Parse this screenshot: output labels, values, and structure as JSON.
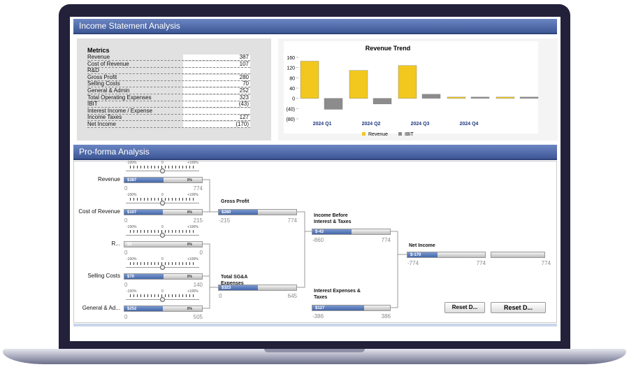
{
  "header": {
    "title": "Income Statement Analysis"
  },
  "metrics": {
    "title": "Metrics",
    "rows": [
      {
        "label": "Revenue",
        "value": "387"
      },
      {
        "label": "Cost of Revenue",
        "value": "107"
      },
      {
        "label": "R&D",
        "value": null
      },
      {
        "label": "Gross Profit",
        "value": "280"
      },
      {
        "label": "Selling Costs",
        "value": "70"
      },
      {
        "label": "General & Admin",
        "value": "252"
      },
      {
        "label": "Total Operating Expenses",
        "value": "323"
      },
      {
        "label": "IBIT",
        "value": "(43)"
      },
      {
        "label": "Interest Income / Expense",
        "value": null
      },
      {
        "label": "Income Taxes",
        "value": "127"
      },
      {
        "label": "Net Income",
        "value": "(170)"
      }
    ]
  },
  "chart_data": {
    "type": "bar",
    "title": "Revenue Trend",
    "categories": [
      "2024 Q1",
      "2024 Q2",
      "2024 Q3",
      "2024 Q4",
      null
    ],
    "series": [
      {
        "name": "Revenue",
        "color": "#f2c81e",
        "values": [
          145,
          109,
          128,
          5,
          5
        ]
      },
      {
        "name": "IBIT",
        "color": "#8c8c8c",
        "values": [
          -43,
          -22,
          16,
          5,
          5
        ]
      }
    ],
    "ylim": [
      -80,
      160
    ],
    "yticks": [
      {
        "value": -80,
        "label": "(80)"
      },
      {
        "value": -40,
        "label": "(40)"
      },
      0,
      40,
      80,
      120,
      160
    ],
    "legend": "bottom"
  },
  "proforma": {
    "title": "Pro-forma Analysis",
    "slider_scale": [
      "-100%",
      "0",
      "+100%"
    ],
    "inputs": [
      {
        "label": "Revenue",
        "value": 387,
        "value_label": "$387",
        "change": "0%",
        "min": 0,
        "max": 774
      },
      {
        "label": "Cost of Revenue",
        "value": 107,
        "value_label": "$107",
        "change": "0%",
        "min": 0,
        "max": 215
      },
      {
        "label": "R...",
        "value": 0,
        "value_label": "$0",
        "change": "0%",
        "min": 0,
        "max": 0
      },
      {
        "label": "Selling Costs",
        "value": 70,
        "value_label": "$70",
        "change": "0%",
        "min": 0,
        "max": 140
      },
      {
        "label": "General & Ad...",
        "value": 252,
        "value_label": "$252",
        "change": "0%",
        "min": 0,
        "max": 505
      }
    ],
    "outputs": [
      {
        "label": "Gross Profit",
        "value": 280,
        "value_label": "$280",
        "min": -215,
        "max": 774
      },
      {
        "label": "Total SG&A Expenses",
        "value": 323,
        "value_label": "$323",
        "min": 0,
        "max": 645
      },
      {
        "label": "Income Before Interest & Taxes",
        "value": -43,
        "value_label": "$-43",
        "min": -860,
        "max": 774
      },
      {
        "label": "Interest Expenses & Taxes",
        "value": 127,
        "value_label": "$127",
        "min": -386,
        "max": 386
      },
      {
        "label": "Net Income",
        "value": -170,
        "value_label": "$-170",
        "min": -774,
        "max": 774
      }
    ],
    "buttons": [
      "Reset D...",
      "Reset D..."
    ]
  }
}
